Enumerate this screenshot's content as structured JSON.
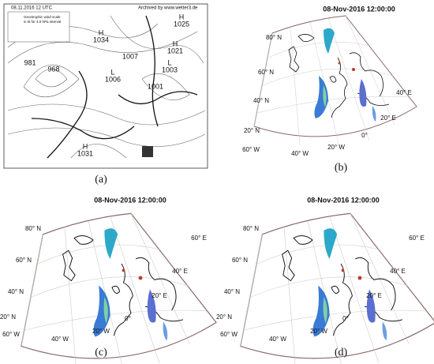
{
  "panels": [
    {
      "caption": "(a)",
      "header": "08.11.2016  12 UTC",
      "archive": "Archived by www.wetter3.de",
      "legend_title": "Geostrophic wind scale",
      "legend_subtitle": "in kt for 4.0 hPa interval",
      "pressure_labels": [
        {
          "letter": "H",
          "value": 1034
        },
        {
          "letter": "H",
          "value": 1025
        },
        {
          "letter": null,
          "value": 1007
        },
        {
          "letter": "H",
          "value": 1021
        },
        {
          "letter": null,
          "value": 981
        },
        {
          "letter": null,
          "value": 968
        },
        {
          "letter": "L",
          "value": 1006
        },
        {
          "letter": "L",
          "value": 1003
        },
        {
          "letter": null,
          "value": 1001
        },
        {
          "letter": "H",
          "value": 1031
        }
      ]
    },
    {
      "caption": "(b)",
      "title": "08-Nov-2016 12:00:00",
      "lat_labels": [
        "80° N",
        "60° N",
        "40° N",
        "20° N"
      ],
      "lon_labels": [
        "60° W",
        "40° W",
        "20° W",
        "0°",
        "20° E",
        "40° E"
      ]
    },
    {
      "caption": "(c)",
      "title": "08-Nov-2016 12:00:00",
      "lat_labels": [
        "80° N",
        "60° N",
        "40° N",
        "20° N"
      ],
      "lon_labels": [
        "60° W",
        "40° W",
        "20° W",
        "0°",
        "20° E",
        "40° E",
        "60° E"
      ]
    },
    {
      "caption": "(d)",
      "title": "08-Nov-2016 12:00:00",
      "lat_labels": [
        "80° N",
        "60° N",
        "40° N",
        "20° N"
      ],
      "lon_labels": [
        "60° W",
        "40° W",
        "20° W",
        "0°",
        "20° E",
        "40° E",
        "60° E"
      ]
    }
  ]
}
